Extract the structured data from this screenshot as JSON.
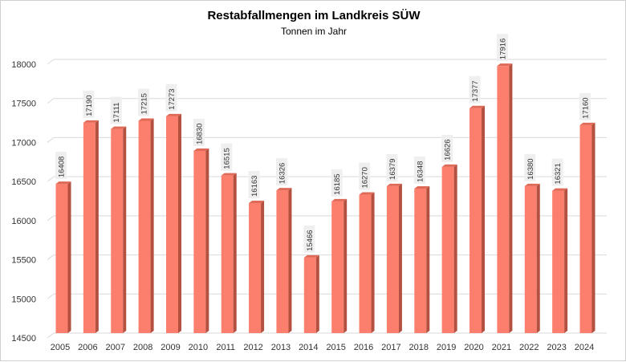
{
  "chart_data": {
    "type": "bar",
    "title": "Restabfallmengen im Landkreis SÜW",
    "subtitle": "Tonnen im Jahr",
    "xlabel": "",
    "ylabel": "",
    "categories": [
      "2005",
      "2006",
      "2007",
      "2008",
      "2009",
      "2010",
      "2011",
      "2012",
      "2013",
      "2014",
      "2015",
      "2016",
      "2017",
      "2018",
      "2019",
      "2020",
      "2021",
      "2022",
      "2023",
      "2024"
    ],
    "values": [
      16408,
      17190,
      17111,
      17215,
      17273,
      16830,
      16515,
      16163,
      16326,
      15466,
      16185,
      16270,
      16379,
      16348,
      16626,
      17377,
      17916,
      16380,
      16321,
      17160
    ],
    "ylim": [
      14500,
      18000
    ],
    "yticks": [
      14500,
      15000,
      15500,
      16000,
      16500,
      17000,
      17500,
      18000
    ],
    "grid": true,
    "legend": "none",
    "data_labels": true,
    "colors": {
      "bar_front": "#fb7f6c",
      "bar_side": "#b4503f",
      "bar_top": "#e06a58",
      "grid": "#d9d9d9",
      "label_bg": "#efefef"
    }
  }
}
